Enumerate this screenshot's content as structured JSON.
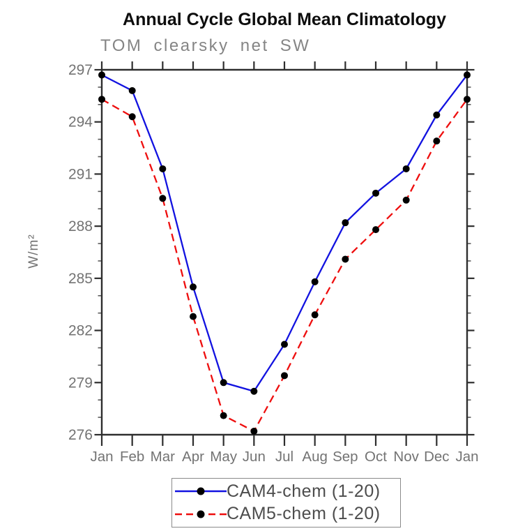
{
  "chart_data": {
    "type": "line",
    "title": "Annual Cycle Global Mean Climatology",
    "subtitle": "TOM clearsky net SW",
    "ylabel": "W/m²",
    "xlabel": "",
    "categories": [
      "Jan",
      "Feb",
      "Mar",
      "Apr",
      "May",
      "Jun",
      "Jul",
      "Aug",
      "Sep",
      "Oct",
      "Nov",
      "Dec",
      "Jan"
    ],
    "ylim": [
      276,
      297
    ],
    "yticks_major": [
      276,
      279,
      282,
      285,
      288,
      291,
      294,
      297
    ],
    "ytick_minor_interval": 1,
    "grid": false,
    "legend_position": "bottom-center",
    "style": {
      "axis_color": "#2e2e2e",
      "minor_tick_color": "#5a5a5a",
      "tick_label_color": "#737373",
      "marker_color": "#000000"
    },
    "series": [
      {
        "name": "CAM4-chem (1-20)",
        "color": "#1212e0",
        "line_style": "solid",
        "marker": "filled-circle",
        "values": [
          296.7,
          295.8,
          291.3,
          284.5,
          279.0,
          278.5,
          281.2,
          284.8,
          288.2,
          289.9,
          291.3,
          294.4,
          296.7
        ]
      },
      {
        "name": "CAM5-chem (1-20)",
        "color": "#ee0e0e",
        "line_style": "dashed",
        "marker": "filled-circle",
        "values": [
          295.3,
          294.3,
          289.6,
          282.8,
          277.1,
          276.2,
          279.4,
          282.9,
          286.1,
          287.8,
          289.5,
          292.9,
          295.3
        ]
      }
    ]
  }
}
